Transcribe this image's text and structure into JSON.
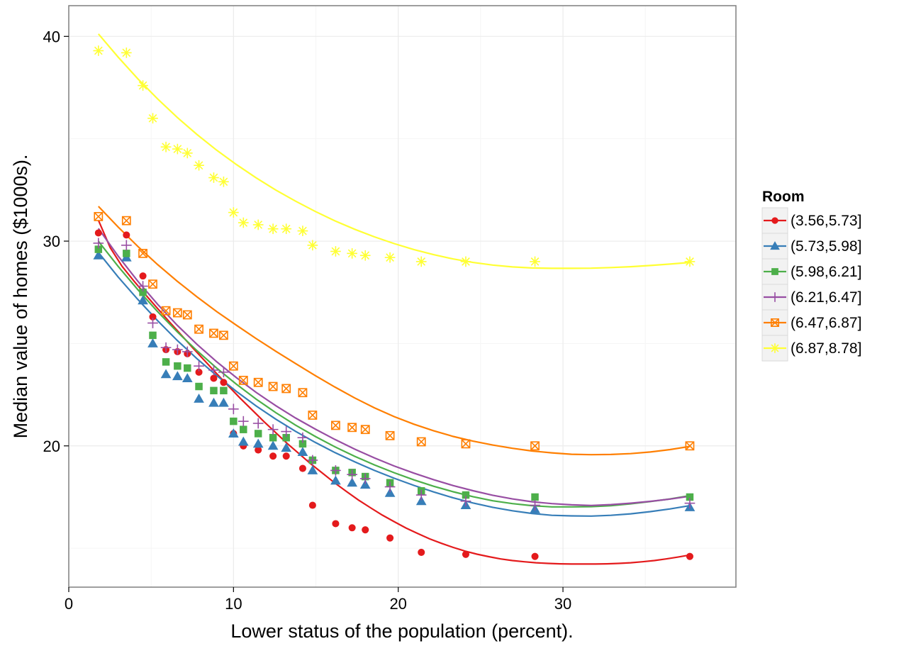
{
  "chart_data": {
    "type": "scatter",
    "title": "",
    "xlabel": "Lower status of the population (percent).",
    "ylabel": "Median value of homes ($1000s).",
    "xlim": [
      0,
      40.5
    ],
    "ylim": [
      13.1,
      41.5
    ],
    "x_ticks": [
      0,
      10,
      20,
      30
    ],
    "y_ticks": [
      20,
      30,
      40
    ],
    "grid": true,
    "background": "white",
    "legend": {
      "title": "Room",
      "position": "right"
    },
    "x": [
      1.8,
      3.5,
      4.5,
      5.1,
      5.9,
      6.6,
      7.2,
      7.9,
      8.8,
      9.4,
      10.0,
      10.6,
      11.5,
      12.4,
      13.2,
      14.2,
      14.8,
      16.2,
      17.2,
      18.0,
      19.5,
      21.4,
      24.1,
      28.3,
      37.7
    ],
    "series": [
      {
        "name": "(3.56,5.73]",
        "color": "#e41a1c",
        "marker": "circle",
        "values": [
          30.4,
          30.3,
          28.3,
          26.3,
          24.7,
          24.6,
          24.5,
          23.6,
          23.3,
          23.1,
          20.6,
          20.0,
          19.8,
          19.5,
          19.5,
          18.9,
          17.1,
          16.2,
          16.0,
          15.9,
          15.5,
          14.8,
          14.7,
          14.6,
          14.6
        ],
        "fit": [
          31.02,
          29.68,
          28.77,
          28.05,
          27.37,
          26.71,
          26.06,
          25.42,
          24.77,
          24.15,
          23.53,
          22.92,
          22.32,
          21.75,
          21.18,
          20.64,
          20.1,
          19.6,
          19.1,
          18.64,
          18.18,
          17.76,
          17.35,
          16.98,
          16.62,
          16.3,
          15.99,
          15.72,
          15.46,
          15.24,
          15.04,
          14.86,
          14.71,
          14.59,
          14.48,
          14.4,
          14.34,
          14.29,
          14.26,
          14.24,
          14.23,
          14.23,
          14.23,
          14.24,
          14.26,
          14.29,
          14.34,
          14.4,
          14.48,
          14.57,
          14.67
        ]
      },
      {
        "name": "(5.73,5.98]",
        "color": "#377eb8",
        "marker": "triangle",
        "values": [
          29.3,
          29.2,
          27.1,
          25.0,
          23.5,
          23.4,
          23.3,
          22.3,
          22.1,
          22.1,
          20.6,
          20.2,
          20.1,
          20.0,
          19.9,
          19.7,
          18.8,
          18.3,
          18.2,
          18.1,
          17.7,
          17.3,
          17.1,
          16.9,
          17.0
        ],
        "fit": [
          29.45,
          28.25,
          27.15,
          26.12,
          25.15,
          24.26,
          23.43,
          22.66,
          21.95,
          21.3,
          20.71,
          20.17,
          19.67,
          19.22,
          18.8,
          18.42,
          18.07,
          17.75,
          17.46,
          17.21,
          17.0,
          16.83,
          16.7,
          16.61,
          16.58,
          16.57,
          16.61,
          16.68,
          16.79,
          16.92,
          17.08
        ]
      },
      {
        "name": "(5.98,6.21]",
        "color": "#4daf4a",
        "marker": "square",
        "values": [
          29.6,
          29.4,
          27.5,
          25.4,
          24.1,
          23.9,
          23.8,
          22.9,
          22.7,
          22.7,
          21.2,
          20.8,
          20.6,
          20.4,
          20.4,
          20.1,
          19.3,
          18.8,
          18.7,
          18.5,
          18.2,
          17.8,
          17.6,
          17.5,
          17.5
        ],
        "fit": [
          29.99,
          28.77,
          27.63,
          26.56,
          25.57,
          24.65,
          23.8,
          23.01,
          22.28,
          21.62,
          21.01,
          20.46,
          19.95,
          19.49,
          19.07,
          18.69,
          18.34,
          18.03,
          17.76,
          17.52,
          17.32,
          17.18,
          17.08,
          17.02,
          17.02,
          17.03,
          17.08,
          17.17,
          17.28,
          17.41,
          17.57
        ]
      },
      {
        "name": "(6.21,6.47]",
        "color": "#984ea3",
        "marker": "plus",
        "values": [
          29.9,
          29.8,
          27.8,
          26.0,
          24.8,
          24.7,
          24.6,
          23.9,
          23.7,
          23.6,
          21.8,
          21.2,
          21.1,
          20.8,
          20.7,
          20.4,
          19.3,
          18.8,
          18.6,
          18.4,
          18.0,
          17.6,
          17.3,
          17.1,
          17.2
        ],
        "fit": [
          30.62,
          29.27,
          28.04,
          26.92,
          25.89,
          24.96,
          24.11,
          23.33,
          22.61,
          21.96,
          21.36,
          20.82,
          20.31,
          19.84,
          19.41,
          19.02,
          18.67,
          18.35,
          18.06,
          17.81,
          17.59,
          17.41,
          17.27,
          17.18,
          17.12,
          17.09,
          17.13,
          17.2,
          17.29,
          17.4,
          17.54
        ]
      },
      {
        "name": "(6.47,6.87]",
        "color": "#ff7f00",
        "marker": "boxcross",
        "values": [
          31.2,
          31.0,
          29.4,
          27.9,
          26.6,
          26.5,
          26.4,
          25.7,
          25.5,
          25.4,
          23.9,
          23.2,
          23.1,
          22.9,
          22.8,
          22.6,
          21.5,
          21.0,
          20.9,
          20.8,
          20.5,
          20.2,
          20.1,
          20.0,
          20.0
        ],
        "fit": [
          31.7,
          30.69,
          29.74,
          28.86,
          28.04,
          27.28,
          26.56,
          25.89,
          25.24,
          24.62,
          24.02,
          23.43,
          22.87,
          22.34,
          21.86,
          21.43,
          21.06,
          20.74,
          20.46,
          20.23,
          20.04,
          19.88,
          19.75,
          19.66,
          19.59,
          19.57,
          19.58,
          19.62,
          19.7,
          19.82,
          19.97
        ]
      },
      {
        "name": "(6.87,8.78]",
        "color": "#ffff33",
        "marker": "asterisk",
        "values": [
          39.3,
          39.2,
          37.6,
          36.0,
          34.6,
          34.5,
          34.3,
          33.7,
          33.1,
          32.9,
          31.4,
          30.9,
          30.8,
          30.6,
          30.6,
          30.5,
          29.8,
          29.5,
          29.4,
          29.3,
          29.2,
          29.0,
          29.0,
          29.0,
          29.0
        ],
        "fit": [
          40.12,
          38.99,
          37.93,
          36.95,
          36.04,
          35.21,
          34.44,
          33.74,
          33.09,
          32.49,
          31.95,
          31.45,
          30.99,
          30.58,
          30.21,
          29.88,
          29.59,
          29.34,
          29.13,
          28.96,
          28.83,
          28.74,
          28.69,
          28.67,
          28.67,
          28.68,
          28.71,
          28.75,
          28.81,
          28.88,
          28.96
        ]
      }
    ]
  }
}
